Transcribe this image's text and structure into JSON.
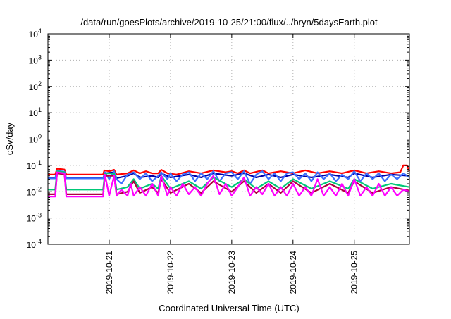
{
  "chart_data": {
    "type": "line",
    "title": "/data/run/goesPlots/archive/2019-10-25/21:00/flux/../bryn/5daysEarth.plot",
    "xlabel": "Coordinated Universal Time (UTC)",
    "ylabel": "cSv/day",
    "yscale": "log",
    "ylim_exp": [
      -4,
      4
    ],
    "yticks": [
      {
        "base": "10",
        "exp": "-4"
      },
      {
        "base": "10",
        "exp": "-3"
      },
      {
        "base": "10",
        "exp": "-2"
      },
      {
        "base": "10",
        "exp": "-1"
      },
      {
        "base": "10",
        "exp": "0"
      },
      {
        "base": "10",
        "exp": "1"
      },
      {
        "base": "10",
        "exp": "2"
      },
      {
        "base": "10",
        "exp": "3"
      },
      {
        "base": "10",
        "exp": "4"
      }
    ],
    "xlim_days": [
      0,
      5.9
    ],
    "xticks": [
      {
        "label": "2019-10-21",
        "day": 1
      },
      {
        "label": "2019-10-22",
        "day": 2
      },
      {
        "label": "2019-10-23",
        "day": 3
      },
      {
        "label": "2019-10-24",
        "day": 4
      },
      {
        "label": "2019-10-25",
        "day": 5
      }
    ],
    "grid": true,
    "series_colors": {
      "red": "#ff0000",
      "navy": "#0000aa",
      "blue": "#3a6fff",
      "green": "#00c878",
      "maroon": "#b00040",
      "magenta": "#ff00ff"
    },
    "series": [
      {
        "color_key": "red",
        "values": [
          [
            0.0,
            0.045
          ],
          [
            0.12,
            0.045
          ],
          [
            0.15,
            0.075
          ],
          [
            0.27,
            0.07
          ],
          [
            0.3,
            0.045
          ],
          [
            0.6,
            0.045
          ],
          [
            0.9,
            0.045
          ],
          [
            0.92,
            0.065
          ],
          [
            1.0,
            0.06
          ],
          [
            1.08,
            0.068
          ],
          [
            1.12,
            0.045
          ],
          [
            1.3,
            0.05
          ],
          [
            1.4,
            0.065
          ],
          [
            1.5,
            0.05
          ],
          [
            1.6,
            0.06
          ],
          [
            1.7,
            0.05
          ],
          [
            1.8,
            0.05
          ],
          [
            1.85,
            0.068
          ],
          [
            1.95,
            0.05
          ],
          [
            2.1,
            0.045
          ],
          [
            2.3,
            0.06
          ],
          [
            2.5,
            0.05
          ],
          [
            2.7,
            0.065
          ],
          [
            2.9,
            0.055
          ],
          [
            3.0,
            0.06
          ],
          [
            3.1,
            0.05
          ],
          [
            3.2,
            0.065
          ],
          [
            3.3,
            0.05
          ],
          [
            3.5,
            0.065
          ],
          [
            3.6,
            0.05
          ],
          [
            3.8,
            0.06
          ],
          [
            4.0,
            0.05
          ],
          [
            4.2,
            0.065
          ],
          [
            4.4,
            0.05
          ],
          [
            4.6,
            0.06
          ],
          [
            4.8,
            0.05
          ],
          [
            5.0,
            0.065
          ],
          [
            5.2,
            0.05
          ],
          [
            5.4,
            0.06
          ],
          [
            5.6,
            0.05
          ],
          [
            5.75,
            0.055
          ],
          [
            5.8,
            0.1
          ],
          [
            5.86,
            0.1
          ],
          [
            5.9,
            0.06
          ]
        ]
      },
      {
        "color_key": "navy",
        "values": [
          [
            0.0,
            0.033
          ],
          [
            0.12,
            0.033
          ],
          [
            0.15,
            0.06
          ],
          [
            0.27,
            0.055
          ],
          [
            0.3,
            0.033
          ],
          [
            0.9,
            0.033
          ],
          [
            0.93,
            0.05
          ],
          [
            1.08,
            0.055
          ],
          [
            1.12,
            0.033
          ],
          [
            1.3,
            0.04
          ],
          [
            1.4,
            0.05
          ],
          [
            1.5,
            0.035
          ],
          [
            1.7,
            0.04
          ],
          [
            1.8,
            0.035
          ],
          [
            1.85,
            0.05
          ],
          [
            2.0,
            0.035
          ],
          [
            2.3,
            0.045
          ],
          [
            2.5,
            0.035
          ],
          [
            2.7,
            0.05
          ],
          [
            3.0,
            0.04
          ],
          [
            3.2,
            0.05
          ],
          [
            3.4,
            0.035
          ],
          [
            3.6,
            0.045
          ],
          [
            3.8,
            0.035
          ],
          [
            4.0,
            0.045
          ],
          [
            4.3,
            0.035
          ],
          [
            4.6,
            0.045
          ],
          [
            4.9,
            0.035
          ],
          [
            5.0,
            0.05
          ],
          [
            5.3,
            0.035
          ],
          [
            5.6,
            0.045
          ],
          [
            5.9,
            0.04
          ]
        ]
      },
      {
        "color_key": "blue",
        "values": [
          [
            0.0,
            0.032
          ],
          [
            0.12,
            0.032
          ],
          [
            0.15,
            0.062
          ],
          [
            0.27,
            0.058
          ],
          [
            0.3,
            0.032
          ],
          [
            0.9,
            0.032
          ],
          [
            0.93,
            0.055
          ],
          [
            1.0,
            0.03
          ],
          [
            1.08,
            0.06
          ],
          [
            1.12,
            0.03
          ],
          [
            1.2,
            0.02
          ],
          [
            1.3,
            0.045
          ],
          [
            1.4,
            0.055
          ],
          [
            1.5,
            0.03
          ],
          [
            1.6,
            0.05
          ],
          [
            1.7,
            0.025
          ],
          [
            1.8,
            0.04
          ],
          [
            1.85,
            0.055
          ],
          [
            1.95,
            0.03
          ],
          [
            2.0,
            0.05
          ],
          [
            2.1,
            0.025
          ],
          [
            2.2,
            0.045
          ],
          [
            2.3,
            0.055
          ],
          [
            2.4,
            0.025
          ],
          [
            2.5,
            0.05
          ],
          [
            2.6,
            0.03
          ],
          [
            2.7,
            0.06
          ],
          [
            2.8,
            0.025
          ],
          [
            2.9,
            0.05
          ],
          [
            3.0,
            0.055
          ],
          [
            3.1,
            0.03
          ],
          [
            3.2,
            0.06
          ],
          [
            3.3,
            0.02
          ],
          [
            3.4,
            0.045
          ],
          [
            3.5,
            0.06
          ],
          [
            3.6,
            0.03
          ],
          [
            3.7,
            0.05
          ],
          [
            3.8,
            0.025
          ],
          [
            3.9,
            0.05
          ],
          [
            4.0,
            0.055
          ],
          [
            4.1,
            0.03
          ],
          [
            4.2,
            0.05
          ],
          [
            4.3,
            0.025
          ],
          [
            4.4,
            0.055
          ],
          [
            4.5,
            0.03
          ],
          [
            4.6,
            0.05
          ],
          [
            4.7,
            0.025
          ],
          [
            4.8,
            0.045
          ],
          [
            4.9,
            0.03
          ],
          [
            5.0,
            0.06
          ],
          [
            5.1,
            0.025
          ],
          [
            5.2,
            0.05
          ],
          [
            5.3,
            0.03
          ],
          [
            5.4,
            0.05
          ],
          [
            5.5,
            0.025
          ],
          [
            5.6,
            0.045
          ],
          [
            5.7,
            0.03
          ],
          [
            5.8,
            0.05
          ],
          [
            5.9,
            0.035
          ]
        ]
      },
      {
        "color_key": "green",
        "values": [
          [
            0.0,
            0.012
          ],
          [
            0.12,
            0.012
          ],
          [
            0.15,
            0.06
          ],
          [
            0.27,
            0.055
          ],
          [
            0.3,
            0.012
          ],
          [
            0.9,
            0.012
          ],
          [
            0.93,
            0.05
          ],
          [
            1.08,
            0.05
          ],
          [
            1.12,
            0.012
          ],
          [
            1.3,
            0.015
          ],
          [
            1.4,
            0.03
          ],
          [
            1.5,
            0.013
          ],
          [
            1.7,
            0.02
          ],
          [
            1.8,
            0.013
          ],
          [
            1.85,
            0.04
          ],
          [
            2.0,
            0.013
          ],
          [
            2.3,
            0.025
          ],
          [
            2.5,
            0.013
          ],
          [
            2.7,
            0.035
          ],
          [
            3.0,
            0.015
          ],
          [
            3.2,
            0.03
          ],
          [
            3.4,
            0.013
          ],
          [
            3.6,
            0.025
          ],
          [
            3.8,
            0.013
          ],
          [
            4.0,
            0.03
          ],
          [
            4.3,
            0.013
          ],
          [
            4.6,
            0.025
          ],
          [
            4.9,
            0.013
          ],
          [
            5.0,
            0.03
          ],
          [
            5.3,
            0.013
          ],
          [
            5.6,
            0.02
          ],
          [
            5.9,
            0.015
          ]
        ]
      },
      {
        "color_key": "maroon",
        "values": [
          [
            0.0,
            0.008
          ],
          [
            0.12,
            0.008
          ],
          [
            0.15,
            0.05
          ],
          [
            0.27,
            0.045
          ],
          [
            0.3,
            0.008
          ],
          [
            0.9,
            0.008
          ],
          [
            0.93,
            0.04
          ],
          [
            1.08,
            0.04
          ],
          [
            1.12,
            0.008
          ],
          [
            1.3,
            0.01
          ],
          [
            1.4,
            0.025
          ],
          [
            1.5,
            0.009
          ],
          [
            1.7,
            0.015
          ],
          [
            1.8,
            0.009
          ],
          [
            1.85,
            0.03
          ],
          [
            2.0,
            0.009
          ],
          [
            2.3,
            0.02
          ],
          [
            2.5,
            0.009
          ],
          [
            2.7,
            0.025
          ],
          [
            3.0,
            0.01
          ],
          [
            3.2,
            0.025
          ],
          [
            3.4,
            0.009
          ],
          [
            3.6,
            0.02
          ],
          [
            3.8,
            0.009
          ],
          [
            4.0,
            0.025
          ],
          [
            4.3,
            0.009
          ],
          [
            4.6,
            0.02
          ],
          [
            4.9,
            0.009
          ],
          [
            5.0,
            0.025
          ],
          [
            5.3,
            0.009
          ],
          [
            5.6,
            0.015
          ],
          [
            5.9,
            0.011
          ]
        ]
      },
      {
        "color_key": "magenta",
        "values": [
          [
            0.0,
            0.0065
          ],
          [
            0.12,
            0.0065
          ],
          [
            0.15,
            0.055
          ],
          [
            0.27,
            0.05
          ],
          [
            0.3,
            0.0065
          ],
          [
            0.9,
            0.0065
          ],
          [
            0.93,
            0.045
          ],
          [
            1.0,
            0.007
          ],
          [
            1.08,
            0.04
          ],
          [
            1.12,
            0.007
          ],
          [
            1.2,
            0.012
          ],
          [
            1.3,
            0.007
          ],
          [
            1.35,
            0.02
          ],
          [
            1.4,
            0.007
          ],
          [
            1.5,
            0.015
          ],
          [
            1.6,
            0.007
          ],
          [
            1.7,
            0.02
          ],
          [
            1.8,
            0.007
          ],
          [
            1.85,
            0.04
          ],
          [
            1.95,
            0.007
          ],
          [
            2.0,
            0.015
          ],
          [
            2.1,
            0.007
          ],
          [
            2.2,
            0.02
          ],
          [
            2.3,
            0.008
          ],
          [
            2.4,
            0.015
          ],
          [
            2.5,
            0.007
          ],
          [
            2.6,
            0.02
          ],
          [
            2.7,
            0.04
          ],
          [
            2.8,
            0.008
          ],
          [
            2.9,
            0.02
          ],
          [
            3.0,
            0.007
          ],
          [
            3.1,
            0.015
          ],
          [
            3.2,
            0.035
          ],
          [
            3.3,
            0.007
          ],
          [
            3.4,
            0.015
          ],
          [
            3.5,
            0.008
          ],
          [
            3.6,
            0.02
          ],
          [
            3.7,
            0.007
          ],
          [
            3.8,
            0.015
          ],
          [
            3.9,
            0.007
          ],
          [
            4.0,
            0.02
          ],
          [
            4.1,
            0.007
          ],
          [
            4.2,
            0.015
          ],
          [
            4.3,
            0.007
          ],
          [
            4.4,
            0.03
          ],
          [
            4.5,
            0.007
          ],
          [
            4.6,
            0.015
          ],
          [
            4.7,
            0.007
          ],
          [
            4.8,
            0.02
          ],
          [
            4.9,
            0.007
          ],
          [
            5.0,
            0.03
          ],
          [
            5.1,
            0.007
          ],
          [
            5.2,
            0.015
          ],
          [
            5.3,
            0.007
          ],
          [
            5.4,
            0.02
          ],
          [
            5.5,
            0.007
          ],
          [
            5.6,
            0.015
          ],
          [
            5.7,
            0.007
          ],
          [
            5.8,
            0.012
          ],
          [
            5.9,
            0.01
          ]
        ]
      }
    ]
  }
}
